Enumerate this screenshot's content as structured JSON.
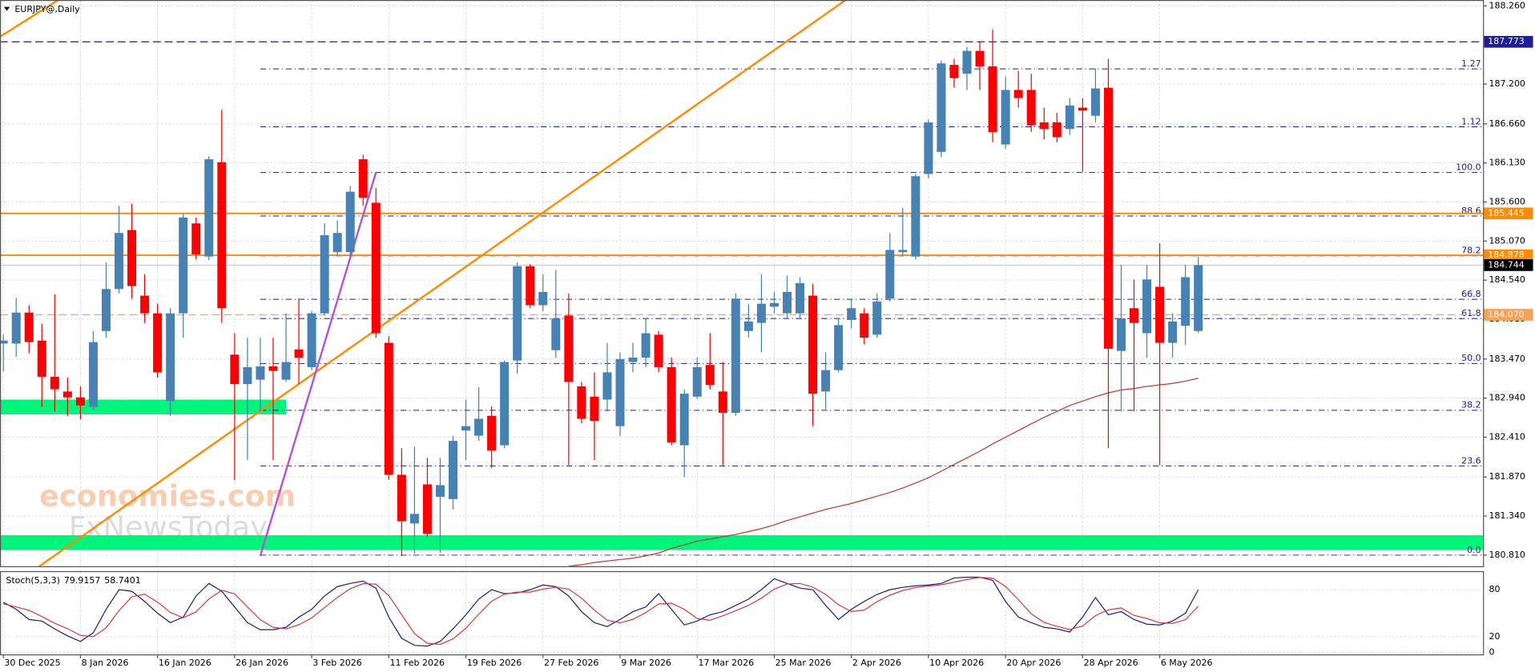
{
  "chart_data": {
    "type": "candlestick",
    "title": "EURJPY@,Daily",
    "categories": [
      "30 Dec 2025",
      null,
      null,
      null,
      null,
      null,
      "8 Jan 2026",
      null,
      null,
      null,
      null,
      null,
      "16 Jan 2026",
      null,
      null,
      null,
      null,
      null,
      "26 Jan 2026",
      null,
      null,
      null,
      null,
      null,
      "3 Feb 2026",
      null,
      null,
      null,
      null,
      null,
      "11 Feb 2026",
      null,
      null,
      null,
      null,
      null,
      "19 Feb 2026",
      null,
      null,
      null,
      null,
      null,
      "27 Feb 2026",
      null,
      null,
      null,
      null,
      null,
      "9 Mar 2026",
      null,
      null,
      null,
      null,
      null,
      "17 Mar 2026",
      null,
      null,
      null,
      null,
      null,
      "25 Mar 2026",
      null,
      null,
      null,
      null,
      null,
      "2 Apr 2026",
      null,
      null,
      null,
      null,
      null,
      "10 Apr 2026",
      null,
      null,
      null,
      null,
      null,
      "20 Apr 2026",
      null,
      null,
      null,
      null,
      null,
      "28 Apr 2026",
      null,
      null,
      null,
      null,
      null,
      "6 May 2026",
      null,
      null,
      null
    ],
    "open": [
      183.68,
      183.68,
      184.1,
      183.72,
      183.23,
      183.03,
      182.95,
      182.82,
      183.85,
      184.42,
      185.22,
      184.33,
      184.09,
      182.9,
      184.09,
      185.31,
      184.86,
      186.14,
      183.53,
      183.13,
      183.19,
      183.37,
      183.19,
      183.6,
      183.36,
      184.09,
      184.92,
      184.92,
      186.18,
      185.59,
      183.69,
      181.9,
      181.24,
      181.77,
      181.6,
      181.57,
      182.5,
      182.43,
      182.7,
      182.3,
      183.45,
      184.73,
      184.2,
      183.59,
      184.06,
      183.1,
      182.96,
      182.92,
      182.56,
      183.43,
      183.49,
      183.8,
      183.36,
      182.3,
      182.96,
      183.39,
      183.03,
      182.74,
      183.85,
      183.96,
      184.18,
      184.09,
      184.09,
      184.33,
      183.03,
      183.32,
      184.0,
      184.09,
      183.8,
      184.29,
      184.92,
      184.86,
      185.98,
      186.28,
      187.46,
      187.34,
      187.65,
      187.44,
      186.38,
      187.12,
      187.12,
      186.68,
      186.68,
      186.59,
      186.88,
      186.77,
      187.15,
      183.58,
      184.16,
      183.82,
      184.45,
      183.69,
      183.92,
      183.85
    ],
    "high": [
      183.8,
      184.3,
      184.2,
      183.95,
      184.35,
      183.22,
      183.1,
      183.85,
      184.78,
      185.55,
      185.58,
      184.62,
      184.22,
      184.16,
      185.44,
      185.39,
      186.22,
      186.85,
      183.82,
      183.76,
      183.76,
      183.76,
      184.09,
      184.29,
      184.12,
      185.31,
      185.35,
      185.82,
      186.24,
      185.79,
      183.78,
      182.26,
      182.28,
      182.13,
      182.13,
      182.43,
      182.92,
      183.09,
      182.83,
      183.45,
      184.78,
      184.76,
      184.62,
      184.68,
      184.36,
      183.16,
      183.29,
      183.69,
      183.56,
      183.69,
      184.02,
      183.85,
      183.49,
      183.06,
      183.49,
      183.82,
      183.43,
      184.36,
      184.22,
      184.62,
      184.38,
      184.6,
      184.58,
      184.49,
      183.56,
      184.02,
      184.29,
      184.16,
      184.36,
      185.18,
      185.52,
      185.98,
      186.72,
      187.52,
      187.54,
      187.7,
      187.78,
      187.94,
      187.3,
      187.38,
      187.34,
      186.88,
      186.81,
      187.01,
      187.01,
      187.41,
      187.54,
      184.75,
      184.55,
      184.75,
      185.04,
      184.09,
      184.75,
      184.86
    ],
    "low": [
      183.3,
      183.5,
      183.55,
      182.82,
      182.76,
      182.7,
      182.65,
      182.78,
      183.76,
      184.36,
      184.29,
      183.96,
      183.22,
      182.7,
      183.76,
      184.82,
      184.81,
      183.96,
      181.83,
      182.1,
      182.76,
      182.1,
      183.16,
      183.13,
      183.32,
      184.06,
      184.86,
      184.82,
      185.55,
      183.76,
      181.83,
      180.8,
      180.83,
      181.06,
      180.84,
      181.43,
      182.1,
      182.36,
      181.99,
      182.26,
      183.27,
      184.16,
      184.12,
      183.49,
      182.03,
      182.6,
      182.1,
      182.76,
      182.43,
      183.29,
      183.36,
      183.29,
      182.3,
      181.87,
      182.93,
      183.06,
      182.03,
      182.7,
      183.76,
      183.56,
      184.09,
      184.02,
      184.02,
      182.56,
      182.79,
      183.29,
      183.89,
      183.67,
      183.76,
      184.25,
      184.86,
      184.82,
      185.92,
      186.21,
      187.15,
      187.12,
      187.12,
      186.41,
      186.32,
      186.88,
      186.55,
      186.45,
      186.41,
      186.51,
      186.01,
      186.68,
      182.26,
      182.76,
      182.76,
      183.49,
      182.03,
      183.49,
      183.66,
      183.82
    ],
    "close": [
      183.72,
      184.1,
      183.7,
      183.23,
      183.06,
      182.95,
      182.84,
      183.7,
      184.42,
      185.18,
      184.46,
      184.09,
      183.29,
      184.09,
      185.39,
      184.89,
      186.18,
      184.16,
      183.13,
      183.36,
      183.37,
      183.31,
      183.43,
      183.49,
      184.09,
      185.15,
      185.18,
      185.74,
      185.66,
      183.82,
      181.9,
      181.27,
      181.37,
      181.1,
      181.76,
      182.36,
      182.56,
      182.66,
      182.23,
      183.43,
      184.73,
      184.2,
      184.38,
      184.02,
      183.16,
      182.66,
      182.63,
      183.29,
      183.47,
      183.49,
      183.82,
      183.36,
      182.34,
      183.0,
      183.36,
      183.12,
      182.74,
      184.29,
      183.98,
      184.22,
      184.23,
      184.38,
      184.5,
      183.0,
      183.32,
      183.93,
      184.16,
      183.76,
      184.25,
      184.95,
      184.95,
      185.95,
      186.68,
      187.48,
      187.28,
      187.65,
      187.44,
      186.55,
      187.12,
      187.01,
      186.64,
      186.59,
      186.48,
      186.91,
      186.84,
      187.14,
      183.61,
      184.02,
      183.96,
      184.55,
      183.69,
      183.98,
      184.58,
      184.744
    ],
    "up_color": "#4682b4",
    "down_color": "#ff0000",
    "ylim": [
      180.66,
      188.34
    ],
    "yticks": [
      {
        "value": 180.81,
        "label": "180.810"
      },
      {
        "value": 181.34,
        "label": "181.340"
      },
      {
        "value": 181.87,
        "label": "181.870"
      },
      {
        "value": 182.41,
        "label": "182.410"
      },
      {
        "value": 182.94,
        "label": "182.940"
      },
      {
        "value": 183.47,
        "label": "183.470"
      },
      {
        "value": 184.01,
        "label": "184.010"
      },
      {
        "value": 184.54,
        "label": "184.540"
      },
      {
        "value": 185.07,
        "label": "185.070"
      },
      {
        "value": 185.6,
        "label": "185.600"
      },
      {
        "value": 186.13,
        "label": "186.130"
      },
      {
        "value": 186.66,
        "label": "186.660"
      },
      {
        "value": 187.2,
        "label": "187.200"
      },
      {
        "value": 188.26,
        "label": "188.260"
      }
    ],
    "grid": true,
    "ma": {
      "color": "#c0392b",
      "values": [
        null,
        null,
        null,
        null,
        null,
        null,
        null,
        null,
        null,
        null,
        null,
        null,
        null,
        null,
        null,
        null,
        null,
        null,
        null,
        null,
        null,
        null,
        null,
        null,
        null,
        null,
        null,
        null,
        null,
        null,
        null,
        null,
        null,
        null,
        null,
        null,
        null,
        null,
        null,
        null,
        null,
        null,
        null,
        null,
        180.66,
        180.68,
        180.71,
        180.73,
        180.75,
        180.77,
        180.8,
        180.84,
        180.9,
        180.95,
        181.0,
        181.03,
        181.06,
        181.09,
        181.13,
        181.17,
        181.22,
        181.28,
        181.33,
        181.38,
        181.43,
        181.47,
        181.51,
        181.56,
        181.61,
        181.66,
        181.72,
        181.79,
        181.86,
        181.95,
        182.04,
        182.13,
        182.22,
        182.32,
        182.41,
        182.5,
        182.59,
        182.68,
        182.76,
        182.84,
        182.9,
        182.96,
        183.01,
        183.05,
        183.07,
        183.1,
        183.12,
        183.14,
        183.17,
        183.21
      ]
    },
    "price_lines": [
      {
        "value": 187.773,
        "color": "#1e1e96",
        "style": "dashed"
      },
      {
        "value": 185.445,
        "color": "#ff8c00",
        "style": "solid"
      },
      {
        "value": 184.878,
        "color": "#ff8c00",
        "style": "solid"
      },
      {
        "value": 184.744,
        "color": "#000000",
        "style": "current"
      },
      {
        "value": 184.07,
        "label": "184.070",
        "color": "#f5a25a",
        "style": "dashed"
      }
    ],
    "fib": {
      "color": "#1e1e8c",
      "start": 20,
      "levels": [
        {
          "value": 180.81,
          "label": "0.0"
        },
        {
          "value": 182.02,
          "label": "23.6"
        },
        {
          "value": 182.775,
          "label": "38.2"
        },
        {
          "value": 183.41,
          "label": "50.0"
        },
        {
          "value": 184.02,
          "label": "61.8"
        },
        {
          "value": 184.28,
          "label": "66.8"
        },
        {
          "value": 184.87,
          "label": "78.2"
        },
        {
          "value": 185.41,
          "label": "88.6"
        },
        {
          "value": 186.0,
          "label": "100.0"
        },
        {
          "value": 186.62,
          "label": "1.12"
        },
        {
          "value": 187.405,
          "label": "1.27"
        }
      ]
    },
    "zones": [
      {
        "from": 182.72,
        "to": 182.92,
        "start": 0,
        "end": 22,
        "color": "#00f57a"
      },
      {
        "from": 180.88,
        "to": 181.08,
        "start": 0,
        "color": "#00f57a"
      }
    ],
    "trendlines": [
      {
        "points": [
          [
            0,
            187.87
          ],
          [
            2,
            188.09
          ]
        ],
        "color": "#ff8c00",
        "ray": true
      },
      {
        "points": [
          [
            10,
            181.54
          ],
          [
            60,
            187.66
          ]
        ],
        "color": "#ff8c00",
        "ray": true
      },
      {
        "points": [
          [
            20,
            180.8
          ],
          [
            29,
            186.0
          ]
        ],
        "color": "#b455d6",
        "ray": false
      }
    ],
    "watermark": [
      "economies.com",
      "FxNewsToday"
    ],
    "indicator": {
      "type": "line",
      "title": "Stoch(5,3,3)",
      "ylim": [
        0,
        100
      ],
      "yticks": [
        0,
        20,
        80
      ],
      "series": [
        {
          "color": "#1e1e8c",
          "values": [
            64,
            55,
            42,
            40,
            30,
            21,
            14,
            25,
            55,
            80,
            78,
            65,
            50,
            38,
            45,
            72,
            88,
            78,
            58,
            38,
            29,
            29,
            32,
            45,
            55,
            72,
            84,
            88,
            91,
            82,
            45,
            18,
            9,
            8,
            14,
            30,
            48,
            68,
            80,
            75,
            76,
            80,
            86,
            84,
            72,
            52,
            38,
            33,
            42,
            52,
            58,
            75,
            55,
            35,
            40,
            48,
            52,
            60,
            68,
            80,
            94,
            88,
            82,
            80,
            60,
            42,
            55,
            65,
            74,
            80,
            83,
            85,
            86,
            88,
            95,
            96,
            96,
            92,
            65,
            45,
            38,
            32,
            30,
            26,
            45,
            70,
            48,
            52,
            42,
            36,
            35,
            40,
            50,
            79.9157
          ]
        },
        {
          "color": "#d43c3c",
          "values": [
            62,
            58,
            53.7,
            45.7,
            37.3,
            30.3,
            21.7,
            20,
            31.3,
            53.3,
            71,
            74.3,
            64.3,
            51,
            44.3,
            51.7,
            68.3,
            79.3,
            74.7,
            58,
            41.7,
            32,
            30,
            35.3,
            44,
            57.3,
            70.3,
            81.3,
            87.7,
            87,
            72.7,
            48.3,
            24,
            11.7,
            10.3,
            17.3,
            30.7,
            48.7,
            65.3,
            74.3,
            77,
            77,
            80.7,
            83.3,
            80.7,
            69.3,
            54,
            41,
            37.7,
            42.3,
            50.7,
            61.7,
            62.7,
            55,
            43.3,
            41,
            46.7,
            53.3,
            60,
            69.3,
            80.7,
            87.3,
            88,
            83.3,
            74,
            60.7,
            52.3,
            54,
            64.7,
            73,
            79,
            82.7,
            84.7,
            86.3,
            89.7,
            93,
            95.7,
            94.7,
            84.3,
            67.3,
            49.3,
            38.3,
            33.3,
            29.3,
            33.7,
            47,
            54.3,
            56.7,
            47.3,
            43.3,
            37.7,
            37,
            41.7,
            58.7401
          ]
        }
      ]
    }
  }
}
